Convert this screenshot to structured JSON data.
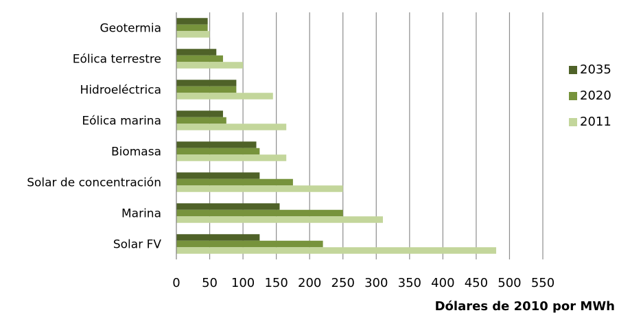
{
  "chart_data": {
    "type": "bar",
    "orientation": "horizontal",
    "categories": [
      "Geotermia",
      "Eólica terrestre",
      "Hidroeléctrica",
      "Eólica marina",
      "Biomasa",
      "Solar de concentración",
      "Marina",
      "Solar FV"
    ],
    "series": [
      {
        "name": "2035",
        "color": "#4f6228",
        "values": [
          47,
          60,
          90,
          70,
          120,
          125,
          155,
          125
        ]
      },
      {
        "name": "2020",
        "color": "#77933c",
        "values": [
          47,
          70,
          90,
          75,
          125,
          175,
          250,
          220
        ]
      },
      {
        "name": "2011",
        "color": "#c3d69b",
        "values": [
          50,
          100,
          145,
          165,
          165,
          250,
          310,
          480
        ]
      }
    ],
    "xlim": [
      0,
      550
    ],
    "xticks": [
      "0",
      "50",
      "100",
      "150",
      "200",
      "250",
      "300",
      "350",
      "400",
      "450",
      "500",
      "550"
    ],
    "xlabel": "Dólares de 2010 por MWh",
    "ylabel": "",
    "grid": "vertical",
    "legend_position": "right"
  }
}
